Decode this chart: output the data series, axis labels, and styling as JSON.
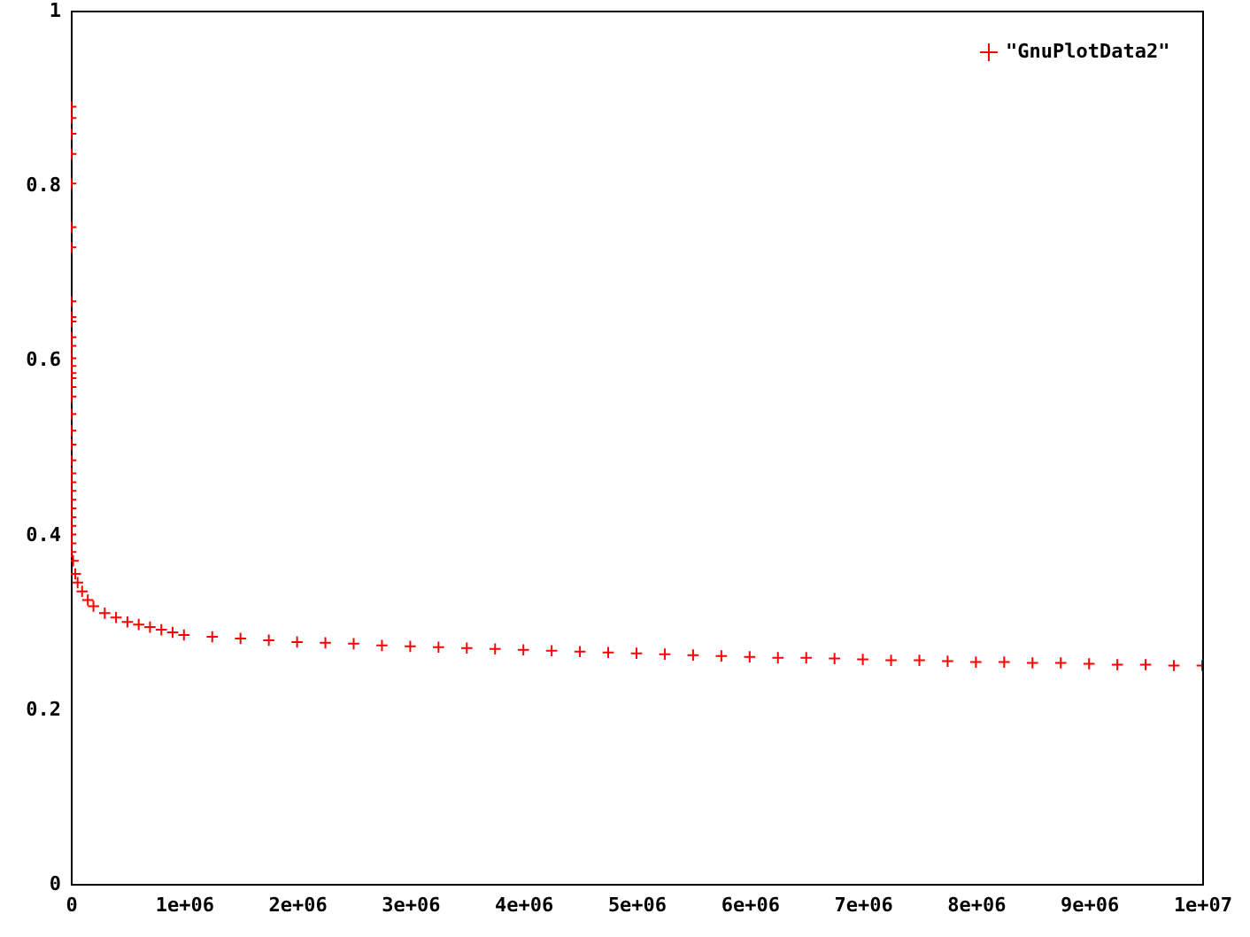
{
  "chart_data": {
    "type": "scatter",
    "marker": "cross",
    "grid": false,
    "legend": "top right",
    "xlim": [
      0,
      10000000
    ],
    "ylim": [
      0,
      1
    ],
    "xticks": [
      0,
      {
        "value": 1000000,
        "label": "1e+06"
      },
      {
        "value": 2000000,
        "label": "2e+06"
      },
      {
        "value": 3000000,
        "label": "3e+06"
      },
      {
        "value": 4000000,
        "label": "4e+06"
      },
      {
        "value": 5000000,
        "label": "5e+06"
      },
      {
        "value": 6000000,
        "label": "6e+06"
      },
      {
        "value": 7000000,
        "label": "7e+06"
      },
      {
        "value": 8000000,
        "label": "8e+06"
      },
      {
        "value": 9000000,
        "label": "9e+06"
      },
      {
        "value": 10000000,
        "label": "1e+07"
      }
    ],
    "yticks": [
      0,
      0.2,
      0.4,
      0.6,
      0.8,
      1
    ],
    "series": [
      {
        "name": "\"GnuPlotData2\"",
        "color": "#ff0000",
        "x": [
          0,
          0,
          0,
          0,
          0,
          0,
          0,
          0,
          0,
          0,
          0,
          0,
          0,
          0,
          0,
          0,
          0,
          0,
          0,
          0,
          0,
          0,
          0,
          0,
          0,
          0,
          0,
          0,
          0,
          0,
          0,
          0,
          20000,
          40000,
          60000,
          100000,
          150000,
          200000,
          300000,
          400000,
          500000,
          600000,
          700000,
          800000,
          900000,
          1000000,
          1250000,
          1500000,
          1750000,
          2000000,
          2250000,
          2500000,
          2750000,
          3000000,
          3250000,
          3500000,
          3750000,
          4000000,
          4250000,
          4500000,
          4750000,
          5000000,
          5250000,
          5500000,
          5750000,
          6000000,
          6250000,
          6500000,
          6750000,
          7000000,
          7250000,
          7500000,
          7750000,
          8000000,
          8250000,
          8500000,
          8750000,
          9000000,
          9250000,
          9500000,
          9750000,
          10000000
        ],
        "values": [
          0.89,
          0.877,
          0.859,
          0.836,
          0.802,
          0.752,
          0.729,
          0.667,
          0.649,
          0.644,
          0.626,
          0.616,
          0.602,
          0.593,
          0.585,
          0.579,
          0.569,
          0.558,
          0.538,
          0.519,
          0.503,
          0.485,
          0.47,
          0.46,
          0.45,
          0.44,
          0.43,
          0.42,
          0.41,
          0.4,
          0.39,
          0.38,
          0.37,
          0.355,
          0.345,
          0.335,
          0.325,
          0.318,
          0.31,
          0.305,
          0.3,
          0.297,
          0.294,
          0.291,
          0.288,
          0.285,
          0.283,
          0.281,
          0.279,
          0.277,
          0.276,
          0.275,
          0.273,
          0.272,
          0.271,
          0.27,
          0.269,
          0.268,
          0.267,
          0.266,
          0.265,
          0.264,
          0.263,
          0.262,
          0.261,
          0.26,
          0.259,
          0.259,
          0.258,
          0.257,
          0.256,
          0.256,
          0.255,
          0.254,
          0.254,
          0.253,
          0.253,
          0.252,
          0.251,
          0.251,
          0.25,
          0.25
        ]
      }
    ]
  }
}
